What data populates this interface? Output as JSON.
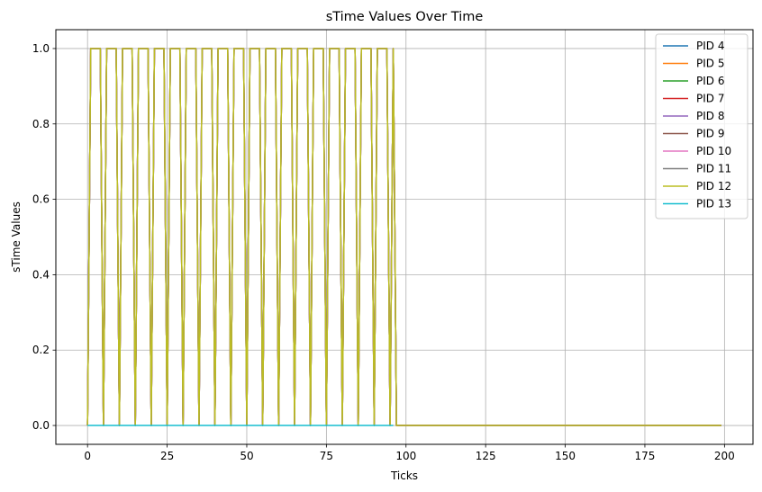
{
  "chart_data": {
    "type": "line",
    "title": "sTime Values Over Time",
    "xlabel": "Ticks",
    "ylabel": "sTime Values",
    "xlim": [
      -9.95,
      208.95
    ],
    "ylim": [
      -0.05,
      1.05
    ],
    "xticks": [
      0,
      25,
      50,
      75,
      100,
      125,
      150,
      175,
      200
    ],
    "yticks": [
      0.0,
      0.2,
      0.4,
      0.6,
      0.8,
      1.0
    ],
    "xtick_labels": [
      "0",
      "25",
      "50",
      "75",
      "100",
      "125",
      "150",
      "175",
      "200"
    ],
    "ytick_labels": [
      "0.0",
      "0.2",
      "0.4",
      "0.6",
      "0.8",
      "1.0"
    ],
    "grid": true,
    "legend_position": "top-right",
    "pattern_note_free": true,
    "series": [
      {
        "name": "PID 4",
        "color": "#1f77b4"
      },
      {
        "name": "PID 5",
        "color": "#ff7f0e"
      },
      {
        "name": "PID 6",
        "color": "#2ca02c"
      },
      {
        "name": "PID 7",
        "color": "#d62728"
      },
      {
        "name": "PID 8",
        "color": "#9467bd"
      },
      {
        "name": "PID 9",
        "color": "#8c564b"
      },
      {
        "name": "PID 10",
        "color": "#e377c2"
      },
      {
        "name": "PID 11",
        "color": "#7f7f7f"
      },
      {
        "name": "PID 12",
        "color": "#bcbd22"
      },
      {
        "name": "PID 13",
        "color": "#17becf"
      }
    ],
    "pulse_series": {
      "x": [
        0,
        1,
        4,
        5,
        6,
        9,
        10,
        11,
        14,
        15,
        16,
        19,
        20,
        21,
        24,
        25,
        26,
        29,
        30,
        31,
        34,
        35,
        36,
        39,
        40,
        41,
        44,
        45,
        46,
        49,
        50,
        51,
        54,
        55,
        56,
        59,
        60,
        61,
        64,
        65,
        66,
        69,
        70,
        71,
        74,
        75,
        76,
        79,
        80,
        81,
        84,
        85,
        86,
        89,
        90,
        91,
        94,
        95,
        96,
        97,
        199
      ],
      "y": [
        0,
        1,
        1,
        0,
        1,
        1,
        0,
        1,
        1,
        0,
        1,
        1,
        0,
        1,
        1,
        0,
        1,
        1,
        0,
        1,
        1,
        0,
        1,
        1,
        0,
        1,
        1,
        0,
        1,
        1,
        0,
        1,
        1,
        0,
        1,
        1,
        0,
        1,
        1,
        0,
        1,
        1,
        0,
        1,
        1,
        0,
        1,
        1,
        0,
        1,
        1,
        0,
        1,
        1,
        0,
        1,
        1,
        0,
        1,
        0,
        0
      ]
    },
    "flat_series": {
      "x": [
        0,
        96
      ],
      "y": [
        0,
        0
      ]
    }
  }
}
